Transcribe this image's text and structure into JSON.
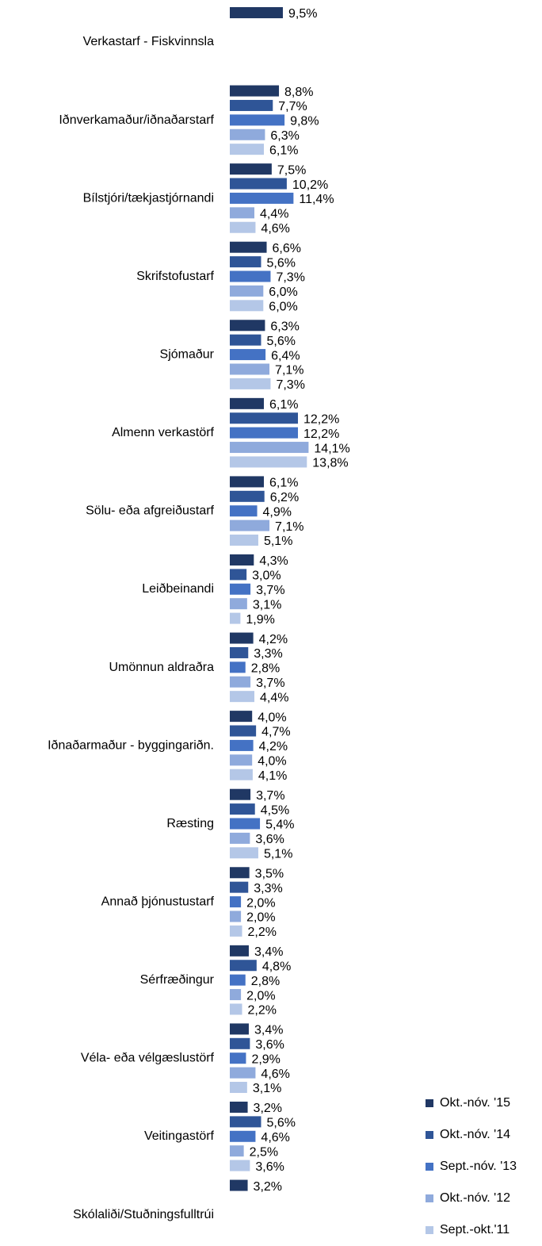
{
  "chart_data": {
    "type": "bar",
    "orientation": "horizontal",
    "categories": [
      "Verkastarf - Fiskvinnsla",
      "Iðnverkamaður/iðnaðarstarf",
      "Bílstjóri/tækjastjórnandi",
      "Skrifstofustarf",
      "Sjómaður",
      "Almenn verkastörf",
      "Sölu- eða afgreiðustarf",
      "Leiðbeinandi",
      "Umönnun aldraðra",
      "Iðnaðarmaður - byggingariðn.",
      "Ræsting",
      "Annað þjónustustarf",
      "Sérfræðingur",
      "Véla- eða vélgæslustörf",
      "Veitingastörf",
      "Skólaliði/Stuðningsfulltrúi"
    ],
    "series": [
      {
        "name": "Okt.-nóv. '15",
        "color": "#203864",
        "values": [
          9.5,
          8.8,
          7.5,
          6.6,
          6.3,
          6.1,
          6.1,
          4.3,
          4.2,
          4.0,
          3.7,
          3.5,
          3.4,
          3.4,
          3.2,
          3.2
        ],
        "value_labels": [
          "9,5%",
          "8,8%",
          "7,5%",
          "6,6%",
          "6,3%",
          "6,1%",
          "6,1%",
          "4,3%",
          "4,2%",
          "4,0%",
          "3,7%",
          "3,5%",
          "3,4%",
          "3,4%",
          "3,2%",
          "3,2%"
        ]
      },
      {
        "name": "Okt.-nóv. '14",
        "color": "#2f5597",
        "values": [
          null,
          7.7,
          10.2,
          5.6,
          5.6,
          12.2,
          6.2,
          3.0,
          3.3,
          4.7,
          4.5,
          3.3,
          4.8,
          3.6,
          5.6,
          null
        ],
        "value_labels": [
          null,
          "7,7%",
          "10,2%",
          "5,6%",
          "5,6%",
          "12,2%",
          "6,2%",
          "3,0%",
          "3,3%",
          "4,7%",
          "4,5%",
          "3,3%",
          "4,8%",
          "3,6%",
          "5,6%",
          null
        ]
      },
      {
        "name": "Sept.-nóv. '13",
        "color": "#4472c4",
        "values": [
          null,
          9.8,
          11.4,
          7.3,
          6.4,
          12.2,
          4.9,
          3.7,
          2.8,
          4.2,
          5.4,
          2.0,
          2.8,
          2.9,
          4.6,
          null
        ],
        "value_labels": [
          null,
          "9,8%",
          "11,4%",
          "7,3%",
          "6,4%",
          "12,2%",
          "4,9%",
          "3,7%",
          "2,8%",
          "4,2%",
          "5,4%",
          "2,0%",
          "2,8%",
          "2,9%",
          "4,6%",
          null
        ]
      },
      {
        "name": "Okt.-nóv. '12",
        "color": "#8faadc",
        "values": [
          null,
          6.3,
          4.4,
          6.0,
          7.1,
          14.1,
          7.1,
          3.1,
          3.7,
          4.0,
          3.6,
          2.0,
          2.0,
          4.6,
          2.5,
          null
        ],
        "value_labels": [
          null,
          "6,3%",
          "4,4%",
          "6,0%",
          "7,1%",
          "14,1%",
          "7,1%",
          "3,1%",
          "3,7%",
          "4,0%",
          "3,6%",
          "2,0%",
          "2,0%",
          "4,6%",
          "2,5%",
          null
        ]
      },
      {
        "name": "Sept.-okt.'11",
        "color": "#b4c7e7",
        "values": [
          null,
          6.1,
          4.6,
          6.0,
          7.3,
          13.8,
          5.1,
          1.9,
          4.4,
          4.1,
          5.1,
          2.2,
          2.2,
          3.1,
          3.6,
          null
        ],
        "value_labels": [
          null,
          "6,1%",
          "4,6%",
          "6,0%",
          "7,3%",
          "13,8%",
          "5,1%",
          "1,9%",
          "4,4%",
          "4,1%",
          "5,1%",
          "2,2%",
          "2,2%",
          "3,1%",
          "3,6%",
          null
        ]
      }
    ],
    "legend": "bottom-right"
  }
}
